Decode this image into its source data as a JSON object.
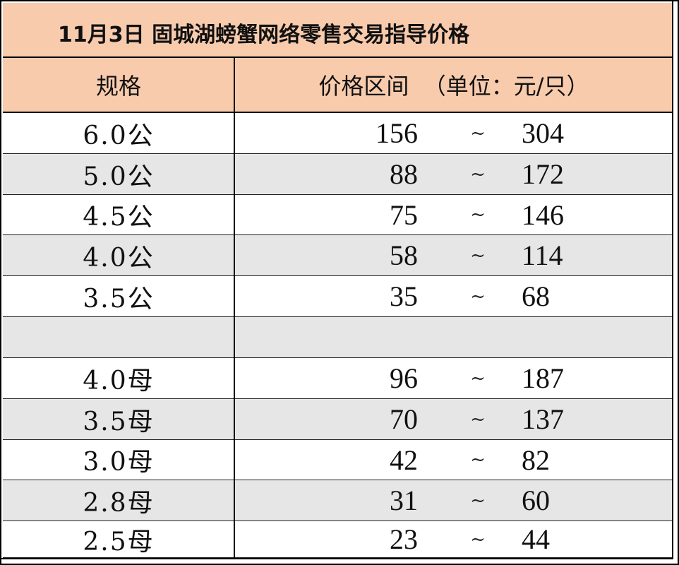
{
  "title": "11月3日 固城湖螃蟹网络零售交易指导价格",
  "header": {
    "spec_label": "规格",
    "price_label": "价格区间  （单位：元/只）"
  },
  "separator": "~",
  "rows": [
    {
      "spec": "6.0公",
      "low": "156",
      "high": "304"
    },
    {
      "spec": "5.0公",
      "low": "88",
      "high": "172"
    },
    {
      "spec": "4.5公",
      "low": "75",
      "high": "146"
    },
    {
      "spec": "4.0公",
      "low": "58",
      "high": "114"
    },
    {
      "spec": "3.5公",
      "low": "35",
      "high": "68"
    },
    {
      "spec": "",
      "low": "",
      "high": ""
    },
    {
      "spec": "4.0母",
      "low": "96",
      "high": "187"
    },
    {
      "spec": "3.5母",
      "low": "70",
      "high": "137"
    },
    {
      "spec": "3.0母",
      "low": "42",
      "high": "82"
    },
    {
      "spec": "2.8母",
      "low": "31",
      "high": "60"
    },
    {
      "spec": "2.5母",
      "low": "23",
      "high": "44"
    }
  ],
  "colors": {
    "header_bg": "#f8cbad",
    "shaded_row_bg": "#e6e6e6",
    "border": "#000000"
  }
}
